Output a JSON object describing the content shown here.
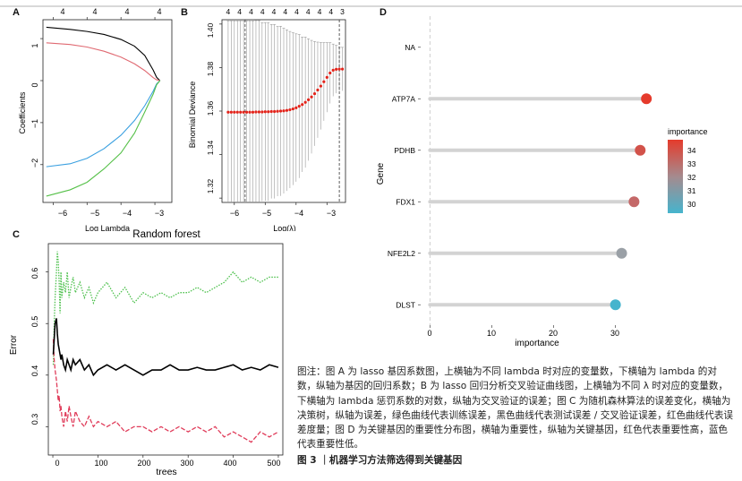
{
  "panels": {
    "A": {
      "label": "A",
      "xlabel": "Log Lambda",
      "ylabel": "Coefficients",
      "xticks": [
        "−6",
        "−5",
        "−4",
        "−3"
      ],
      "yticks": [
        "−2",
        "−1",
        "0",
        "1"
      ],
      "top_ticks": [
        "4",
        "4",
        "4",
        "4"
      ]
    },
    "B": {
      "label": "B",
      "xlabel": "Log(λ)",
      "ylabel": "Binomial Deviance",
      "xticks": [
        "−6",
        "−5",
        "−4",
        "−3"
      ],
      "yticks": [
        "1.32",
        "1.34",
        "1.36",
        "1.38",
        "1.40"
      ],
      "top_ticks": [
        "4",
        "4",
        "4",
        "4",
        "4",
        "4",
        "4",
        "4",
        "4",
        "4",
        "3"
      ]
    },
    "C": {
      "label": "C",
      "title": "Random forest",
      "xlabel": "trees",
      "ylabel": "Error",
      "xticks": [
        "0",
        "100",
        "200",
        "300",
        "400",
        "500"
      ],
      "yticks": [
        "0.3",
        "0.4",
        "0.5",
        "0.6"
      ]
    },
    "D": {
      "label": "D",
      "xlabel": "importance",
      "ylabel": "Gene",
      "xticks": [
        "0",
        "10",
        "20",
        "30"
      ],
      "legend_title": "importance",
      "legend_ticks": [
        "34",
        "33",
        "32",
        "31",
        "30"
      ]
    }
  },
  "chart_data": [
    {
      "panel": "A",
      "type": "line",
      "xlabel": "Log Lambda",
      "ylabel": "Coefficients",
      "xlim": [
        -6.3,
        -2.5
      ],
      "ylim": [
        -2.9,
        1.45
      ],
      "series": [
        {
          "color": "#000000",
          "x": [
            -6.2,
            -5.5,
            -5,
            -4.5,
            -4,
            -3.6,
            -3.3,
            -3.05,
            -2.95,
            -2.85
          ],
          "y": [
            1.27,
            1.22,
            1.17,
            1.1,
            0.98,
            0.82,
            0.6,
            0.25,
            0.08,
            0.0
          ]
        },
        {
          "color": "#e06a72",
          "x": [
            -6.2,
            -5.5,
            -5,
            -4.5,
            -4,
            -3.6,
            -3.3,
            -3.05,
            -2.95,
            -2.85
          ],
          "y": [
            0.9,
            0.86,
            0.8,
            0.7,
            0.56,
            0.4,
            0.24,
            0.07,
            0.02,
            0.0
          ]
        },
        {
          "color": "#3aa0e0",
          "x": [
            -6.2,
            -5.5,
            -5,
            -4.5,
            -4,
            -3.6,
            -3.3,
            -3.05,
            -2.95,
            -2.85
          ],
          "y": [
            -2.05,
            -1.98,
            -1.85,
            -1.62,
            -1.3,
            -0.95,
            -0.6,
            -0.25,
            -0.08,
            0.0
          ]
        },
        {
          "color": "#55c048",
          "x": [
            -6.2,
            -5.5,
            -5,
            -4.5,
            -4,
            -3.6,
            -3.3,
            -3.05,
            -2.95,
            -2.85
          ],
          "y": [
            -2.75,
            -2.6,
            -2.42,
            -2.1,
            -1.72,
            -1.25,
            -0.75,
            -0.32,
            -0.1,
            0.0
          ]
        }
      ]
    },
    {
      "panel": "B",
      "type": "scatter",
      "xlabel": "Log(λ)",
      "ylabel": "Binomial Deviance",
      "xlim": [
        -6.4,
        -2.4
      ],
      "ylim": [
        1.318,
        1.402
      ],
      "vlines": [
        -5.65,
        -2.6
      ],
      "points_x": [
        -6.2,
        -6.1,
        -6.0,
        -5.9,
        -5.8,
        -5.7,
        -5.6,
        -5.5,
        -5.4,
        -5.3,
        -5.2,
        -5.1,
        -5.0,
        -4.9,
        -4.8,
        -4.7,
        -4.6,
        -4.5,
        -4.4,
        -4.3,
        -4.2,
        -4.1,
        -4.0,
        -3.9,
        -3.8,
        -3.7,
        -3.6,
        -3.5,
        -3.4,
        -3.3,
        -3.2,
        -3.1,
        -3.0,
        -2.9,
        -2.8,
        -2.7,
        -2.6,
        -2.5
      ],
      "points_y": [
        1.3595,
        1.3595,
        1.3595,
        1.3595,
        1.3595,
        1.3595,
        1.3595,
        1.3595,
        1.3595,
        1.3596,
        1.3596,
        1.3596,
        1.3597,
        1.3597,
        1.3598,
        1.3598,
        1.3599,
        1.36,
        1.3601,
        1.3603,
        1.3606,
        1.361,
        1.3615,
        1.3622,
        1.363,
        1.364,
        1.3652,
        1.3665,
        1.368,
        1.3697,
        1.3715,
        1.3735,
        1.3755,
        1.3775,
        1.3788,
        1.3792,
        1.3793,
        1.3793
      ],
      "errors": [
        0.042,
        0.042,
        0.042,
        0.042,
        0.042,
        0.042,
        0.042,
        0.042,
        0.042,
        0.042,
        0.042,
        0.041,
        0.041,
        0.041,
        0.04,
        0.04,
        0.039,
        0.039,
        0.038,
        0.037,
        0.036,
        0.035,
        0.034,
        0.033,
        0.031,
        0.03,
        0.028,
        0.026,
        0.024,
        0.022,
        0.02,
        0.018,
        0.016,
        0.014,
        0.012,
        0.011,
        0.01,
        0.01
      ]
    },
    {
      "panel": "C",
      "type": "line",
      "title": "Random forest",
      "xlabel": "trees",
      "ylabel": "Error",
      "xlim": [
        -10,
        510
      ],
      "ylim": [
        0.245,
        0.655
      ],
      "series": [
        {
          "color": "#000000",
          "style": "solid",
          "x": [
            1,
            3,
            5,
            8,
            10,
            12,
            14,
            16,
            18,
            20,
            24,
            28,
            32,
            36,
            40,
            45,
            50,
            60,
            70,
            80,
            90,
            100,
            120,
            140,
            160,
            180,
            200,
            220,
            240,
            260,
            280,
            300,
            320,
            340,
            360,
            380,
            400,
            420,
            440,
            460,
            480,
            500
          ],
          "y": [
            0.44,
            0.47,
            0.5,
            0.51,
            0.48,
            0.46,
            0.45,
            0.44,
            0.43,
            0.44,
            0.42,
            0.41,
            0.43,
            0.42,
            0.41,
            0.43,
            0.42,
            0.43,
            0.41,
            0.42,
            0.4,
            0.41,
            0.42,
            0.41,
            0.42,
            0.41,
            0.4,
            0.41,
            0.41,
            0.42,
            0.41,
            0.41,
            0.415,
            0.41,
            0.41,
            0.415,
            0.42,
            0.41,
            0.415,
            0.41,
            0.42,
            0.415
          ]
        },
        {
          "color": "#e03c5a",
          "style": "dashed",
          "x": [
            1,
            3,
            5,
            8,
            10,
            12,
            14,
            16,
            18,
            20,
            24,
            28,
            32,
            36,
            40,
            45,
            50,
            60,
            70,
            80,
            90,
            100,
            120,
            140,
            160,
            180,
            200,
            220,
            240,
            260,
            280,
            300,
            320,
            340,
            360,
            380,
            400,
            420,
            440,
            460,
            480,
            500
          ],
          "y": [
            0.47,
            0.43,
            0.41,
            0.39,
            0.37,
            0.35,
            0.36,
            0.33,
            0.34,
            0.32,
            0.3,
            0.33,
            0.31,
            0.34,
            0.32,
            0.3,
            0.33,
            0.31,
            0.3,
            0.32,
            0.3,
            0.31,
            0.3,
            0.31,
            0.29,
            0.3,
            0.3,
            0.29,
            0.3,
            0.29,
            0.3,
            0.29,
            0.3,
            0.29,
            0.3,
            0.28,
            0.29,
            0.28,
            0.27,
            0.29,
            0.28,
            0.29
          ]
        },
        {
          "color": "#4cc04c",
          "style": "dotted",
          "x": [
            1,
            3,
            5,
            8,
            10,
            12,
            14,
            16,
            18,
            20,
            24,
            28,
            32,
            36,
            40,
            45,
            50,
            60,
            70,
            80,
            90,
            100,
            120,
            140,
            160,
            180,
            200,
            220,
            240,
            260,
            280,
            300,
            320,
            340,
            360,
            380,
            400,
            420,
            440,
            460,
            480,
            500
          ],
          "y": [
            0.42,
            0.5,
            0.55,
            0.6,
            0.64,
            0.62,
            0.58,
            0.52,
            0.6,
            0.55,
            0.58,
            0.56,
            0.6,
            0.55,
            0.57,
            0.59,
            0.56,
            0.58,
            0.55,
            0.57,
            0.54,
            0.56,
            0.58,
            0.55,
            0.57,
            0.54,
            0.56,
            0.55,
            0.56,
            0.55,
            0.56,
            0.56,
            0.57,
            0.56,
            0.57,
            0.58,
            0.6,
            0.58,
            0.59,
            0.58,
            0.59,
            0.59
          ]
        }
      ]
    },
    {
      "panel": "D",
      "type": "bar",
      "orientation": "horizontal",
      "xlabel": "importance",
      "ylabel": "Gene",
      "xlim": [
        -1.5,
        37
      ],
      "categories": [
        "NA",
        "ATP7A",
        "PDHB",
        "FDX1",
        "NFE2L2",
        "DLST"
      ],
      "values": [
        0,
        35,
        34,
        33,
        31,
        30
      ],
      "colors": [
        "",
        "#e53b2c",
        "#d2524a",
        "#c46868",
        "#9aa0a6",
        "#46b4cd"
      ],
      "legend": {
        "title": "importance",
        "ticks": [
          34,
          33,
          32,
          31,
          30
        ],
        "gradient_top": "#e53b2c",
        "gradient_bottom": "#46b4cd"
      }
    }
  ],
  "caption": {
    "text": "图注：图 A 为 lasso 基因系数图，上横轴为不同 lambda 时对应的变量数，下横轴为 lambda 的对数，纵轴为基因的回归系数；B 为 lasso 回归分析交叉验证曲线图，上横轴为不同 λ 时对应的变量数，下横轴为 lambda 惩罚系数的对数，纵轴为交叉验证的误差；图 C 为随机森林算法的误差变化，横轴为决策树，纵轴为误差，绿色曲线代表训练误差，黑色曲线代表测试误差 / 交叉验证误差，红色曲线代表误差度量；图 D 为关键基因的重要性分布图，横轴为重要性，纵轴为关键基因，红色代表重要性高，蓝色代表重要性低。",
    "title": "图 3  ｜机器学习方法筛选得到关键基因"
  }
}
